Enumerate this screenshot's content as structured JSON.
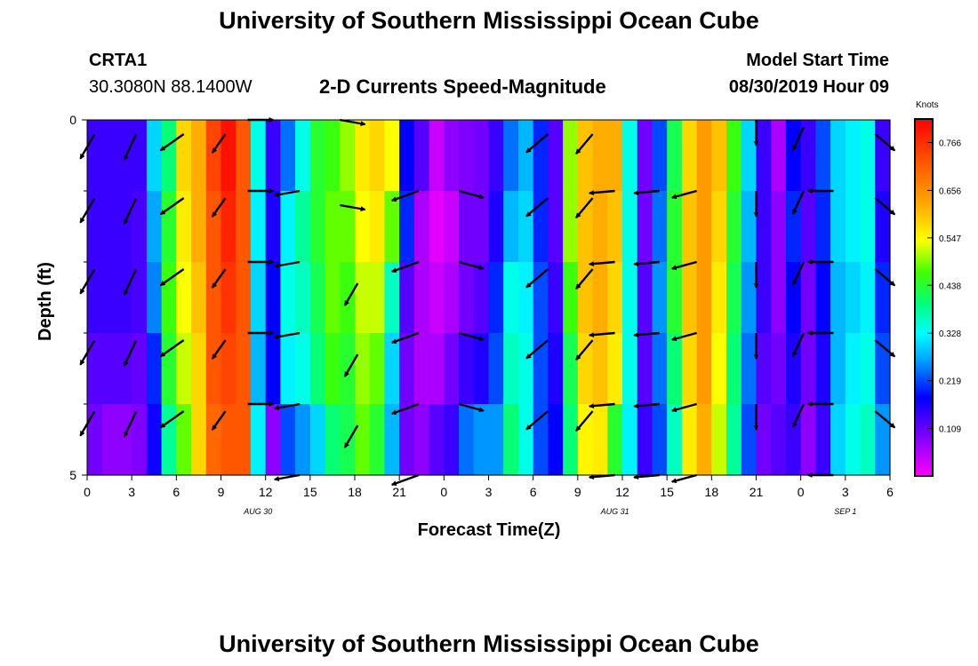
{
  "header": {
    "title": "University of Southern Mississippi Ocean Cube",
    "station": "CRTA1",
    "coords": "30.3080N 88.1400W",
    "subtitle": "2-D Currents Speed-Magnitude",
    "model_start_label": "Model Start Time",
    "model_start_value": "08/30/2019 Hour 09"
  },
  "footer": {
    "title": "University of Southern Mississippi Ocean Cube"
  },
  "colorbar": {
    "unit": "Knots",
    "ticks": [
      "0.766",
      "0.656",
      "0.547",
      "0.438",
      "0.328",
      "0.219",
      "0.109"
    ]
  },
  "chart_data": {
    "type": "heatmap",
    "title": "2-D Currents Speed-Magnitude",
    "xlabel": "Forecast Time(Z)",
    "ylabel": "Depth (ft)",
    "x_ticks": [
      "0",
      "3",
      "6",
      "9",
      "12",
      "15",
      "18",
      "21",
      "0",
      "3",
      "6",
      "9",
      "12",
      "15",
      "18",
      "21",
      "0",
      "3",
      "6"
    ],
    "date_labels": [
      {
        "text": "AUG 30",
        "hour": 11.5
      },
      {
        "text": "AUG 31",
        "hour": 35.5
      },
      {
        "text": "SEP 1",
        "hour": 51
      }
    ],
    "y_ticks": [
      "0",
      "5"
    ],
    "ylim": [
      0,
      5
    ],
    "xlim": [
      0,
      54
    ],
    "vmin": 0.0,
    "vmax": 0.82,
    "hours": 54,
    "depth_levels": 5,
    "speed_by_hour_surface_to_bottom": [
      [
        0.14,
        0.14,
        0.14,
        0.12,
        0.1
      ],
      [
        0.14,
        0.14,
        0.14,
        0.12,
        0.08
      ],
      [
        0.14,
        0.14,
        0.14,
        0.12,
        0.08
      ],
      [
        0.14,
        0.13,
        0.13,
        0.11,
        0.09
      ],
      [
        0.3,
        0.27,
        0.25,
        0.2,
        0.17
      ],
      [
        0.4,
        0.44,
        0.46,
        0.44,
        0.38
      ],
      [
        0.58,
        0.56,
        0.54,
        0.52,
        0.48
      ],
      [
        0.62,
        0.62,
        0.6,
        0.58,
        0.58
      ],
      [
        0.74,
        0.72,
        0.72,
        0.72,
        0.7
      ],
      [
        0.8,
        0.78,
        0.76,
        0.74,
        0.72
      ],
      [
        0.72,
        0.72,
        0.72,
        0.72,
        0.72
      ],
      [
        0.34,
        0.32,
        0.3,
        0.28,
        0.32
      ],
      [
        0.14,
        0.16,
        0.18,
        0.18,
        0.08
      ],
      [
        0.24,
        0.32,
        0.34,
        0.32,
        0.22
      ],
      [
        0.34,
        0.38,
        0.36,
        0.34,
        0.26
      ],
      [
        0.44,
        0.44,
        0.42,
        0.4,
        0.3
      ],
      [
        0.46,
        0.48,
        0.48,
        0.46,
        0.4
      ],
      [
        0.5,
        0.48,
        0.46,
        0.44,
        0.42
      ],
      [
        0.56,
        0.54,
        0.52,
        0.5,
        0.48
      ],
      [
        0.58,
        0.56,
        0.52,
        0.48,
        0.44
      ],
      [
        0.54,
        0.48,
        0.36,
        0.3,
        0.28
      ],
      [
        0.18,
        0.2,
        0.12,
        0.1,
        0.1
      ],
      [
        0.12,
        0.06,
        0.06,
        0.06,
        0.08
      ],
      [
        0.04,
        0.02,
        0.04,
        0.06,
        0.12
      ],
      [
        0.08,
        0.04,
        0.06,
        0.1,
        0.14
      ],
      [
        0.09,
        0.1,
        0.1,
        0.14,
        0.24
      ],
      [
        0.1,
        0.1,
        0.12,
        0.16,
        0.26
      ],
      [
        0.14,
        0.16,
        0.2,
        0.22,
        0.26
      ],
      [
        0.24,
        0.28,
        0.34,
        0.36,
        0.4
      ],
      [
        0.28,
        0.3,
        0.32,
        0.34,
        0.34
      ],
      [
        0.2,
        0.2,
        0.22,
        0.22,
        0.22
      ],
      [
        0.12,
        0.12,
        0.14,
        0.16,
        0.18
      ],
      [
        0.5,
        0.5,
        0.46,
        0.42,
        0.4
      ],
      [
        0.6,
        0.6,
        0.6,
        0.58,
        0.55
      ],
      [
        0.62,
        0.62,
        0.62,
        0.6,
        0.56
      ],
      [
        0.62,
        0.6,
        0.58,
        0.56,
        0.44
      ],
      [
        0.34,
        0.34,
        0.34,
        0.34,
        0.32
      ],
      [
        0.1,
        0.1,
        0.12,
        0.12,
        0.14
      ],
      [
        0.22,
        0.24,
        0.26,
        0.24,
        0.22
      ],
      [
        0.42,
        0.44,
        0.44,
        0.4,
        0.36
      ],
      [
        0.58,
        0.6,
        0.6,
        0.58,
        0.56
      ],
      [
        0.64,
        0.64,
        0.64,
        0.64,
        0.62
      ],
      [
        0.6,
        0.58,
        0.56,
        0.54,
        0.52
      ],
      [
        0.46,
        0.44,
        0.42,
        0.4,
        0.38
      ],
      [
        0.3,
        0.28,
        0.26,
        0.24,
        0.22
      ],
      [
        0.14,
        0.14,
        0.14,
        0.12,
        0.1
      ],
      [
        0.06,
        0.08,
        0.08,
        0.1,
        0.12
      ],
      [
        0.18,
        0.2,
        0.18,
        0.16,
        0.14
      ],
      [
        0.14,
        0.12,
        0.1,
        0.1,
        0.08
      ],
      [
        0.22,
        0.2,
        0.18,
        0.16,
        0.14
      ],
      [
        0.3,
        0.3,
        0.28,
        0.28,
        0.3
      ],
      [
        0.32,
        0.32,
        0.3,
        0.32,
        0.34
      ],
      [
        0.34,
        0.34,
        0.32,
        0.34,
        0.36
      ],
      [
        0.14,
        0.16,
        0.2,
        0.22,
        0.26
      ]
    ],
    "vectors": [
      {
        "hour": 0.5,
        "depths": [
          0.2,
          1.1,
          2.1,
          3.1,
          4.1
        ],
        "angle_deg": 120,
        "len": 1
      },
      {
        "hour": 3.3,
        "depths": [
          0.2,
          1.1,
          2.1,
          3.1,
          4.1
        ],
        "angle_deg": 115,
        "len": 1
      },
      {
        "hour": 6.5,
        "depths": [
          0.2,
          1.1,
          2.1,
          3.1,
          4.1
        ],
        "angle_deg": 145,
        "len": 1
      },
      {
        "hour": 9.3,
        "depths": [
          0.2,
          1.1,
          2.1,
          3.1,
          4.1
        ],
        "angle_deg": 125,
        "len": 0.8
      },
      {
        "hour": 10.8,
        "depths": [
          0.0,
          1.0,
          2.0,
          3.0,
          4.0
        ],
        "angle_deg": 0,
        "len": 0.9
      },
      {
        "hour": 14.3,
        "depths": [
          1.0,
          2.0,
          3.0,
          4.0,
          5.0
        ],
        "angle_deg": 170,
        "len": 0.9
      },
      {
        "hour": 17.0,
        "depths": [
          0.0,
          1.2
        ],
        "angle_deg": 10,
        "len": 0.9
      },
      {
        "hour": 18.2,
        "depths": [
          2.3,
          3.3,
          4.3
        ],
        "angle_deg": 120,
        "len": 0.9
      },
      {
        "hour": 22.3,
        "depths": [
          1.0,
          2.0,
          3.0,
          4.0,
          5.0
        ],
        "angle_deg": 160,
        "len": 1
      },
      {
        "hour": 25.0,
        "depths": [
          1.0,
          2.0,
          3.0,
          4.0
        ],
        "angle_deg": 15,
        "len": 0.9
      },
      {
        "hour": 31.0,
        "depths": [
          0.2,
          1.1,
          2.1,
          3.1,
          4.1
        ],
        "angle_deg": 140,
        "len": 1
      },
      {
        "hour": 34.0,
        "depths": [
          0.2,
          1.1,
          2.1,
          3.1,
          4.1
        ],
        "angle_deg": 130,
        "len": 0.9
      },
      {
        "hour": 35.5,
        "depths": [
          1.0,
          2.0,
          3.0,
          4.0,
          5.0
        ],
        "angle_deg": 175,
        "len": 0.9
      },
      {
        "hour": 38.5,
        "depths": [
          1.0,
          2.0,
          3.0,
          4.0,
          5.0
        ],
        "angle_deg": 175,
        "len": 0.9
      },
      {
        "hour": 41.0,
        "depths": [
          1.0,
          2.0,
          3.0,
          4.0,
          5.0
        ],
        "angle_deg": 165,
        "len": 0.9
      },
      {
        "hour": 45.0,
        "depths": [
          0.0,
          1.0,
          2.0,
          3.0,
          4.0
        ],
        "angle_deg": 90,
        "len": 0.9
      },
      {
        "hour": 48.2,
        "depths": [
          0.1,
          1.0,
          2.0,
          3.0,
          4.0
        ],
        "angle_deg": 115,
        "len": 0.9
      },
      {
        "hour": 50.2,
        "depths": [
          1.0,
          2.0,
          3.0,
          4.0,
          5.0
        ],
        "angle_deg": 180,
        "len": 0.9
      },
      {
        "hour": 53.0,
        "depths": [
          0.2,
          1.1,
          2.1,
          3.1,
          4.1
        ],
        "angle_deg": 40,
        "len": 0.9
      }
    ]
  }
}
